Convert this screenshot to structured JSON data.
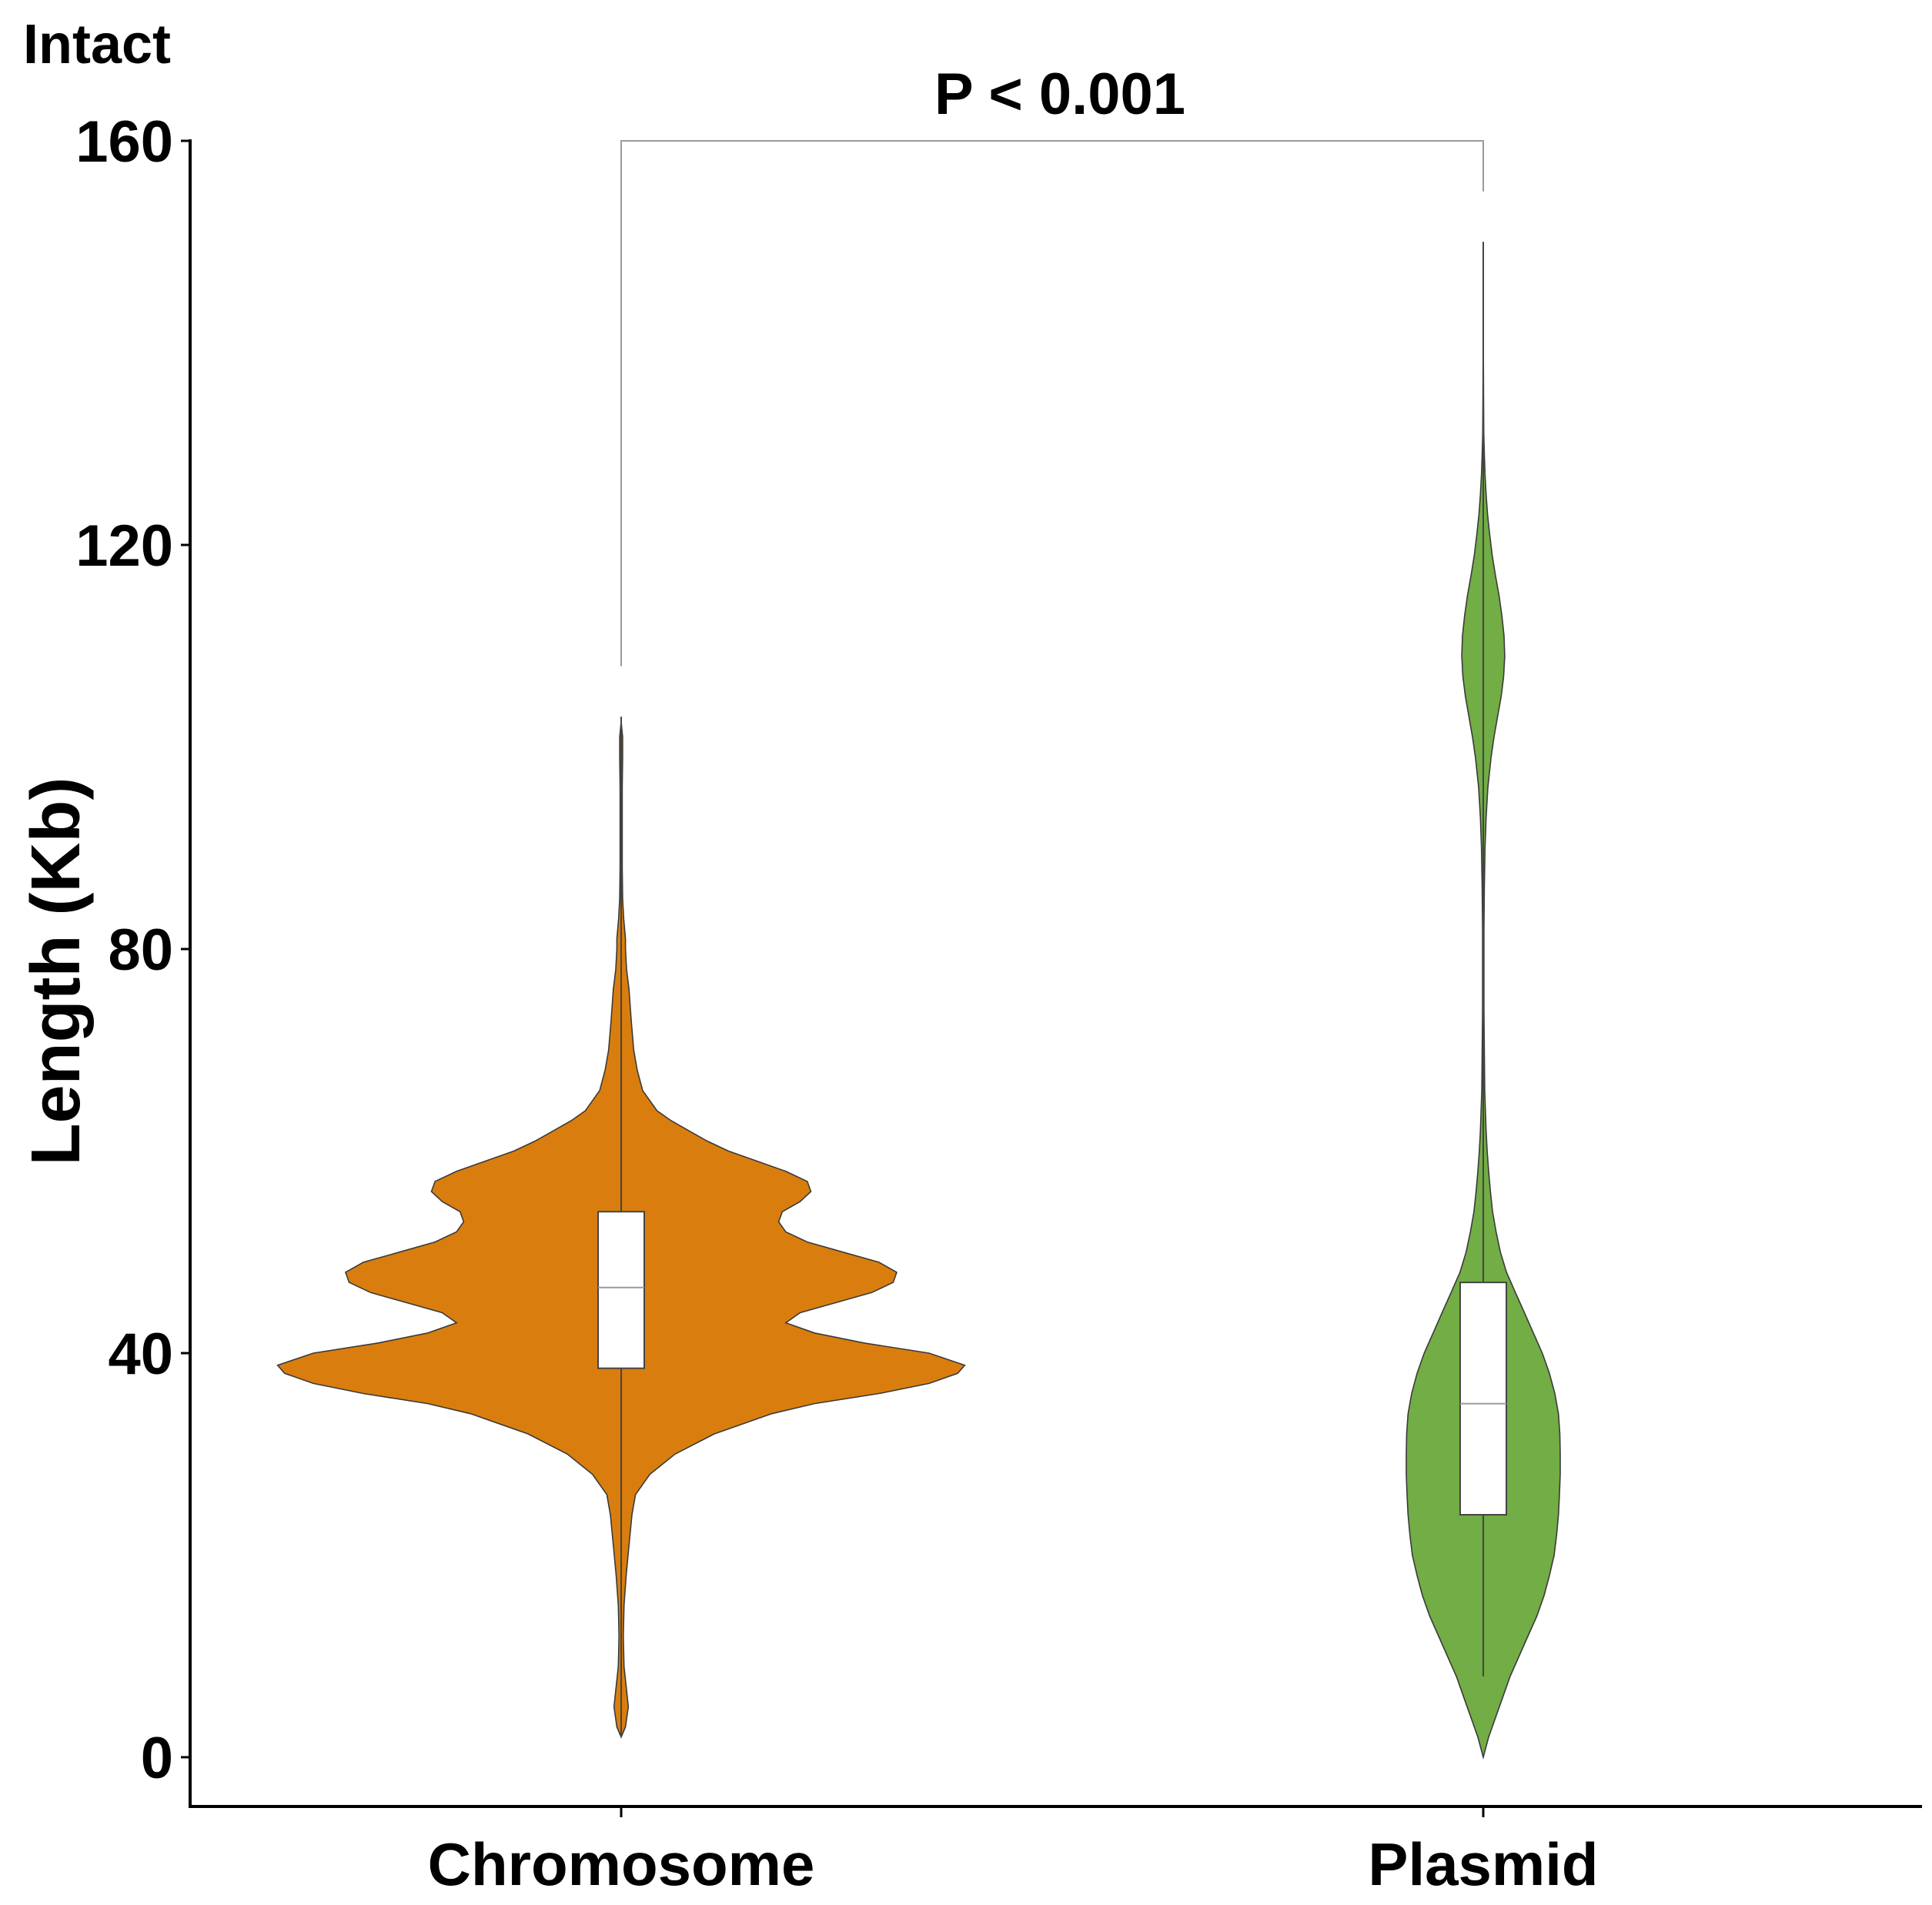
{
  "chart_data": {
    "type": "violin",
    "panel_label": "Intact",
    "title": "",
    "xlabel": "",
    "ylabel": "Length (Kb)",
    "ylim": [
      -4,
      160
    ],
    "yticks": [
      0,
      40,
      80,
      120,
      160
    ],
    "categories": [
      "Chromosome",
      "Plasmid"
    ],
    "significance": {
      "label": "P < 0.001",
      "between": [
        "Chromosome",
        "Plasmid"
      ],
      "bracket_y": 160,
      "left_bottom_y": 108,
      "right_bottom_y": 155
    },
    "series": [
      {
        "name": "Chromosome",
        "color": "#D97E0E",
        "box": {
          "q1": 38.5,
          "median": 46.5,
          "q3": 54,
          "whisker_low": 2,
          "whisker_high": 103
        },
        "density": [
          [
            2,
            0
          ],
          [
            3,
            0.012
          ],
          [
            5,
            0.02
          ],
          [
            7,
            0.014
          ],
          [
            9,
            0.008
          ],
          [
            12,
            0.006
          ],
          [
            15,
            0.008
          ],
          [
            18,
            0.014
          ],
          [
            21,
            0.022
          ],
          [
            24,
            0.03
          ],
          [
            26,
            0.04
          ],
          [
            28,
            0.08
          ],
          [
            30,
            0.15
          ],
          [
            32,
            0.26
          ],
          [
            34,
            0.42
          ],
          [
            35,
            0.54
          ],
          [
            36,
            0.72
          ],
          [
            37,
            0.86
          ],
          [
            38,
            0.94
          ],
          [
            38.8,
            0.96
          ],
          [
            40,
            0.86
          ],
          [
            41,
            0.68
          ],
          [
            42,
            0.54
          ],
          [
            43,
            0.46
          ],
          [
            44,
            0.5
          ],
          [
            45,
            0.6
          ],
          [
            46,
            0.7
          ],
          [
            47,
            0.76
          ],
          [
            48,
            0.77
          ],
          [
            49,
            0.72
          ],
          [
            50,
            0.62
          ],
          [
            51,
            0.52
          ],
          [
            52,
            0.46
          ],
          [
            53,
            0.44
          ],
          [
            54,
            0.45
          ],
          [
            55,
            0.5
          ],
          [
            56,
            0.53
          ],
          [
            57,
            0.52
          ],
          [
            58,
            0.46
          ],
          [
            59,
            0.38
          ],
          [
            60,
            0.3
          ],
          [
            61,
            0.24
          ],
          [
            62,
            0.19
          ],
          [
            63,
            0.14
          ],
          [
            64,
            0.1
          ],
          [
            66,
            0.06
          ],
          [
            68,
            0.045
          ],
          [
            70,
            0.035
          ],
          [
            73,
            0.028
          ],
          [
            76,
            0.022
          ],
          [
            78,
            0.015
          ],
          [
            80,
            0.012
          ],
          [
            81,
            0.012
          ],
          [
            83,
            0.007
          ],
          [
            85,
            0.004
          ],
          [
            88,
            0.003
          ],
          [
            92,
            0.003
          ],
          [
            96,
            0.003
          ],
          [
            99,
            0.004
          ],
          [
            101,
            0.004
          ],
          [
            102.5,
            0.0
          ]
        ]
      },
      {
        "name": "Plasmid",
        "color": "#72AD45",
        "box": {
          "q1": 24,
          "median": 35,
          "q3": 47,
          "whisker_low": 8,
          "whisker_high": 150
        },
        "density": [
          [
            0,
            0
          ],
          [
            2,
            0.015
          ],
          [
            4,
            0.035
          ],
          [
            6,
            0.055
          ],
          [
            8,
            0.075
          ],
          [
            10,
            0.1
          ],
          [
            12,
            0.125
          ],
          [
            14,
            0.15
          ],
          [
            16,
            0.17
          ],
          [
            18,
            0.185
          ],
          [
            20,
            0.198
          ],
          [
            22,
            0.205
          ],
          [
            24,
            0.21
          ],
          [
            26,
            0.213
          ],
          [
            28,
            0.215
          ],
          [
            30,
            0.215
          ],
          [
            32,
            0.214
          ],
          [
            34,
            0.21
          ],
          [
            36,
            0.2
          ],
          [
            38,
            0.185
          ],
          [
            40,
            0.165
          ],
          [
            42,
            0.14
          ],
          [
            44,
            0.115
          ],
          [
            46,
            0.09
          ],
          [
            48,
            0.065
          ],
          [
            50,
            0.048
          ],
          [
            52,
            0.036
          ],
          [
            54,
            0.026
          ],
          [
            56,
            0.02
          ],
          [
            58,
            0.015
          ],
          [
            60,
            0.011
          ],
          [
            62,
            0.008
          ],
          [
            64,
            0.006
          ],
          [
            66,
            0.004
          ],
          [
            70,
            0.003
          ],
          [
            74,
            0.002
          ],
          [
            78,
            0.002
          ],
          [
            82,
            0.002
          ],
          [
            86,
            0.003
          ],
          [
            90,
            0.005
          ],
          [
            93,
            0.008
          ],
          [
            96,
            0.013
          ],
          [
            99,
            0.022
          ],
          [
            101,
            0.03
          ],
          [
            103,
            0.04
          ],
          [
            105,
            0.05
          ],
          [
            107,
            0.057
          ],
          [
            109,
            0.06
          ],
          [
            111,
            0.058
          ],
          [
            113,
            0.052
          ],
          [
            115,
            0.044
          ],
          [
            117,
            0.034
          ],
          [
            119,
            0.025
          ],
          [
            121,
            0.018
          ],
          [
            123,
            0.012
          ],
          [
            125,
            0.008
          ],
          [
            127,
            0.005
          ],
          [
            129,
            0.003
          ],
          [
            131,
            0.0015
          ],
          [
            135,
            0.0008
          ],
          [
            140,
            0.0003
          ],
          [
            145,
            0.0002
          ],
          [
            150,
            0.0
          ]
        ]
      }
    ]
  }
}
